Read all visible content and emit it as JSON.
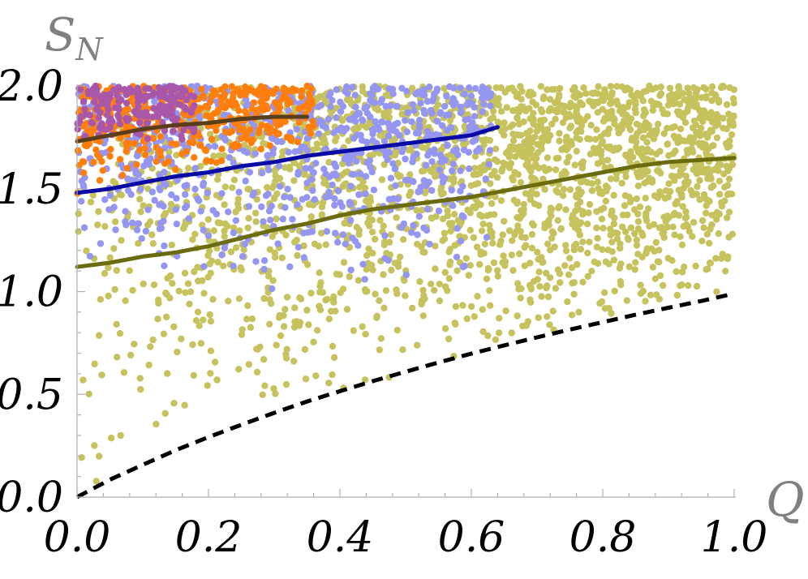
{
  "chart_data": {
    "type": "scatter",
    "title": "",
    "xlabel": "Q",
    "ylabel_main": "S",
    "ylabel_sub": "N",
    "xlim": [
      0.0,
      1.0
    ],
    "ylim": [
      0.0,
      2.0
    ],
    "xticks": [
      "0.0",
      "0.2",
      "0.4",
      "0.6",
      "0.8",
      "1.0"
    ],
    "yticks": [
      "0.0",
      "0.5",
      "1.0",
      "1.5",
      "2.0"
    ],
    "colors": {
      "olive_points": "#c6c25e",
      "blue_points": "#9595f2",
      "orange_points": "#ff7f0e",
      "purple_points": "#a957a8",
      "olive_line": "#6b6b10",
      "blue_line": "#0a0aa5",
      "brown_line": "#5a3d1a",
      "bound_line": "#000000"
    },
    "point_clouds": [
      {
        "color": "olive_points",
        "q_max": 1.0,
        "count": 2300
      },
      {
        "color": "blue_points",
        "q_max": 0.63,
        "count": 800
      },
      {
        "color": "orange_points",
        "q_max": 0.36,
        "count": 420
      },
      {
        "color": "purple_points",
        "q_max": 0.18,
        "count": 190
      }
    ],
    "lines": [
      {
        "color": "olive_line",
        "x": [
          0.0,
          0.05,
          0.1,
          0.15,
          0.2,
          0.25,
          0.3,
          0.35,
          0.4,
          0.45,
          0.5,
          0.55,
          0.6,
          0.65,
          0.7,
          0.75,
          0.8,
          0.85,
          0.9,
          0.95,
          1.0
        ],
        "y": [
          1.12,
          1.14,
          1.17,
          1.19,
          1.22,
          1.26,
          1.3,
          1.33,
          1.37,
          1.4,
          1.42,
          1.44,
          1.46,
          1.49,
          1.52,
          1.55,
          1.58,
          1.61,
          1.63,
          1.64,
          1.65
        ]
      },
      {
        "color": "blue_line",
        "x": [
          0.0,
          0.05,
          0.1,
          0.15,
          0.2,
          0.25,
          0.3,
          0.35,
          0.4,
          0.45,
          0.5,
          0.55,
          0.6,
          0.64
        ],
        "y": [
          1.48,
          1.5,
          1.53,
          1.56,
          1.58,
          1.61,
          1.63,
          1.66,
          1.68,
          1.7,
          1.72,
          1.74,
          1.76,
          1.8
        ]
      },
      {
        "color": "brown_line",
        "x": [
          0.0,
          0.05,
          0.1,
          0.15,
          0.2,
          0.25,
          0.3,
          0.35
        ],
        "y": [
          1.73,
          1.76,
          1.79,
          1.81,
          1.82,
          1.84,
          1.85,
          1.85
        ]
      },
      {
        "color": "bound_line",
        "dashed": true,
        "x": [
          0.0,
          0.05,
          0.1,
          0.15,
          0.2,
          0.25,
          0.3,
          0.35,
          0.4,
          0.45,
          0.5,
          0.55,
          0.6,
          0.65,
          0.7,
          0.75,
          0.8,
          0.85,
          0.9,
          0.95,
          1.0
        ],
        "y": [
          0.0,
          0.085,
          0.157,
          0.228,
          0.292,
          0.352,
          0.41,
          0.465,
          0.515,
          0.564,
          0.61,
          0.655,
          0.698,
          0.738,
          0.777,
          0.815,
          0.851,
          0.887,
          0.921,
          0.954,
          0.99
        ]
      }
    ]
  }
}
